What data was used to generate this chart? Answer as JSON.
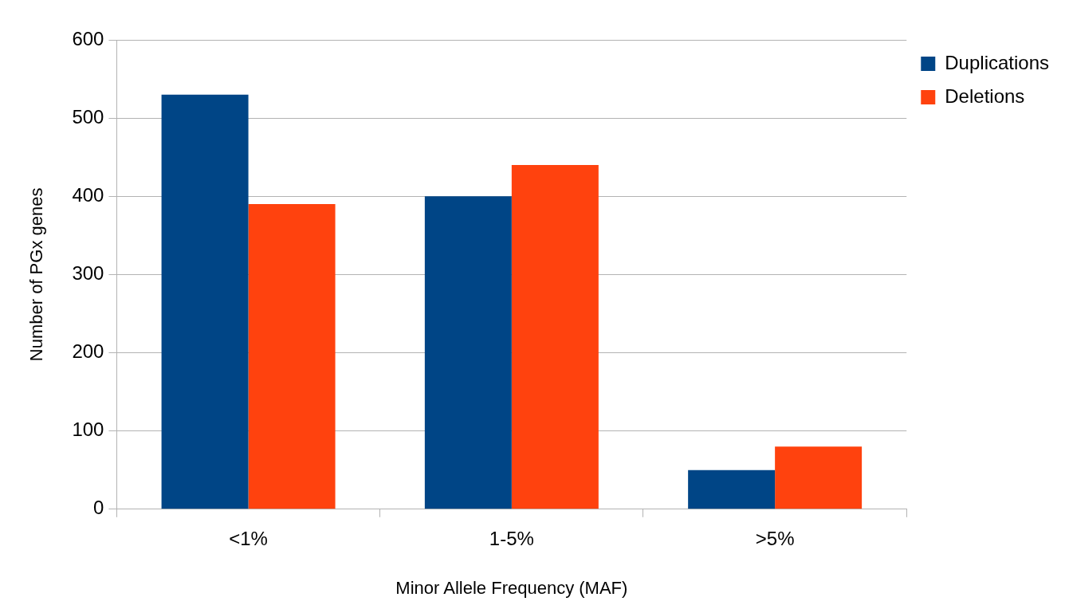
{
  "chart_data": {
    "type": "bar",
    "xlabel": "Minor Allele Frequency (MAF)",
    "ylabel": "Number of PGx genes",
    "categories": [
      "<1%",
      "1-5%",
      ">5%"
    ],
    "series": [
      {
        "name": "Duplications",
        "color": "#004586",
        "values": [
          530,
          400,
          50
        ]
      },
      {
        "name": "Deletions",
        "color": "#ff420e",
        "values": [
          390,
          440,
          80
        ]
      }
    ],
    "ylim": [
      0,
      600
    ],
    "yticks": [
      0,
      100,
      200,
      300,
      400,
      500,
      600
    ],
    "grid": "y",
    "legend": "top right"
  }
}
